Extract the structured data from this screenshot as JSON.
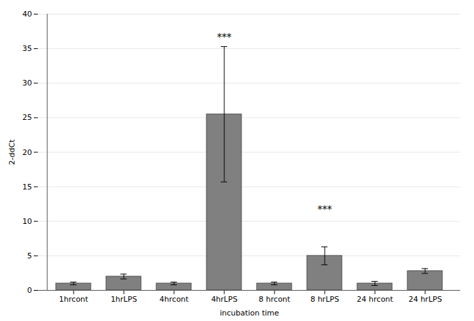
{
  "chart_data": {
    "type": "bar",
    "categories": [
      "1hrcont",
      "1hrLPS",
      "4hrcont",
      "4hrLPS",
      "8 hrcont",
      "8 hrLPS",
      "24 hrcont",
      "24 hrLPS"
    ],
    "values": [
      1.0,
      2.0,
      1.0,
      25.5,
      1.0,
      5.0,
      1.0,
      2.8
    ],
    "errors": [
      0.2,
      0.35,
      0.2,
      9.8,
      0.2,
      1.3,
      0.3,
      0.35
    ],
    "color": "#808080",
    "xlabel": "incubation time",
    "ylabel": "2-ddCt",
    "ylim": [
      0,
      40
    ],
    "yticks": [
      0,
      5,
      10,
      15,
      20,
      25,
      30,
      35,
      40
    ],
    "grid": true,
    "annotations": [
      {
        "x": "4hrLPS",
        "y": 36.2,
        "text": "***"
      },
      {
        "x": "8 hrLPS",
        "y": 11.2,
        "text": "***"
      }
    ]
  }
}
